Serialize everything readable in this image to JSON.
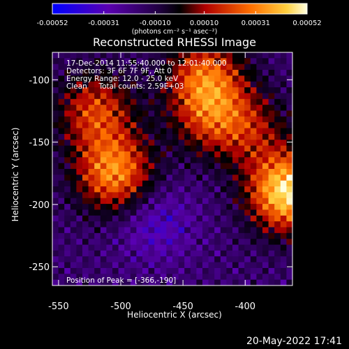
{
  "chart_data": {
    "type": "heatmap",
    "title": "Reconstructed RHESSI Image",
    "xlabel": "Heliocentric X (arcsec)",
    "ylabel": "Heliocentric Y (arcsec)",
    "xlim": [
      -555,
      -362
    ],
    "ylim": [
      -265,
      -78
    ],
    "x_ticks": [
      -550,
      -500,
      -450,
      -400
    ],
    "x_tick_labels": [
      "-550",
      "-500",
      "-450",
      "-400"
    ],
    "y_ticks": [
      -100,
      -150,
      -200,
      -250
    ],
    "y_tick_labels": [
      "-100",
      "-150",
      "-200",
      "-250"
    ],
    "colorbar": {
      "range": [
        -0.00052,
        0.00052
      ],
      "ticks": [
        -0.00052,
        -0.00031,
        -0.0001,
        0.0001,
        0.00031,
        0.00052
      ],
      "tick_labels": [
        "-0.00052",
        "-0.00031",
        "-0.00010",
        "0.00010",
        "0.00031",
        "0.00052"
      ],
      "unit": "(photons cm⁻² s⁻¹ asec⁻²)",
      "colors": [
        "#0000ff",
        "#5500aa",
        "#000000",
        "#cc0000",
        "#ff8800",
        "#ffffcc"
      ]
    },
    "info_lines": [
      "17-Dec-2014 11:55:40.000 to 12:01:40.000",
      "Detectors: 3F 6F 7F 9F, Att 0",
      "Energy Range: 12.0 - 25.0 keV",
      "Clean     Total counts: 2.59E+03"
    ],
    "peak_label": "Position of Peak = [-366,-190]",
    "sources": [
      {
        "x": -366,
        "y": -190,
        "intensity": 1.0
      },
      {
        "x": -505,
        "y": -175,
        "intensity": 0.75
      },
      {
        "x": -520,
        "y": -125,
        "intensity": 0.55
      },
      {
        "x": -432,
        "y": -97,
        "intensity": 0.6
      },
      {
        "x": -428,
        "y": -130,
        "intensity": 0.45
      },
      {
        "x": -395,
        "y": -140,
        "intensity": 0.35
      },
      {
        "x": -472,
        "y": -215,
        "intensity": -0.25
      }
    ]
  },
  "footer": {
    "date": "20-May-2022 17:41"
  }
}
